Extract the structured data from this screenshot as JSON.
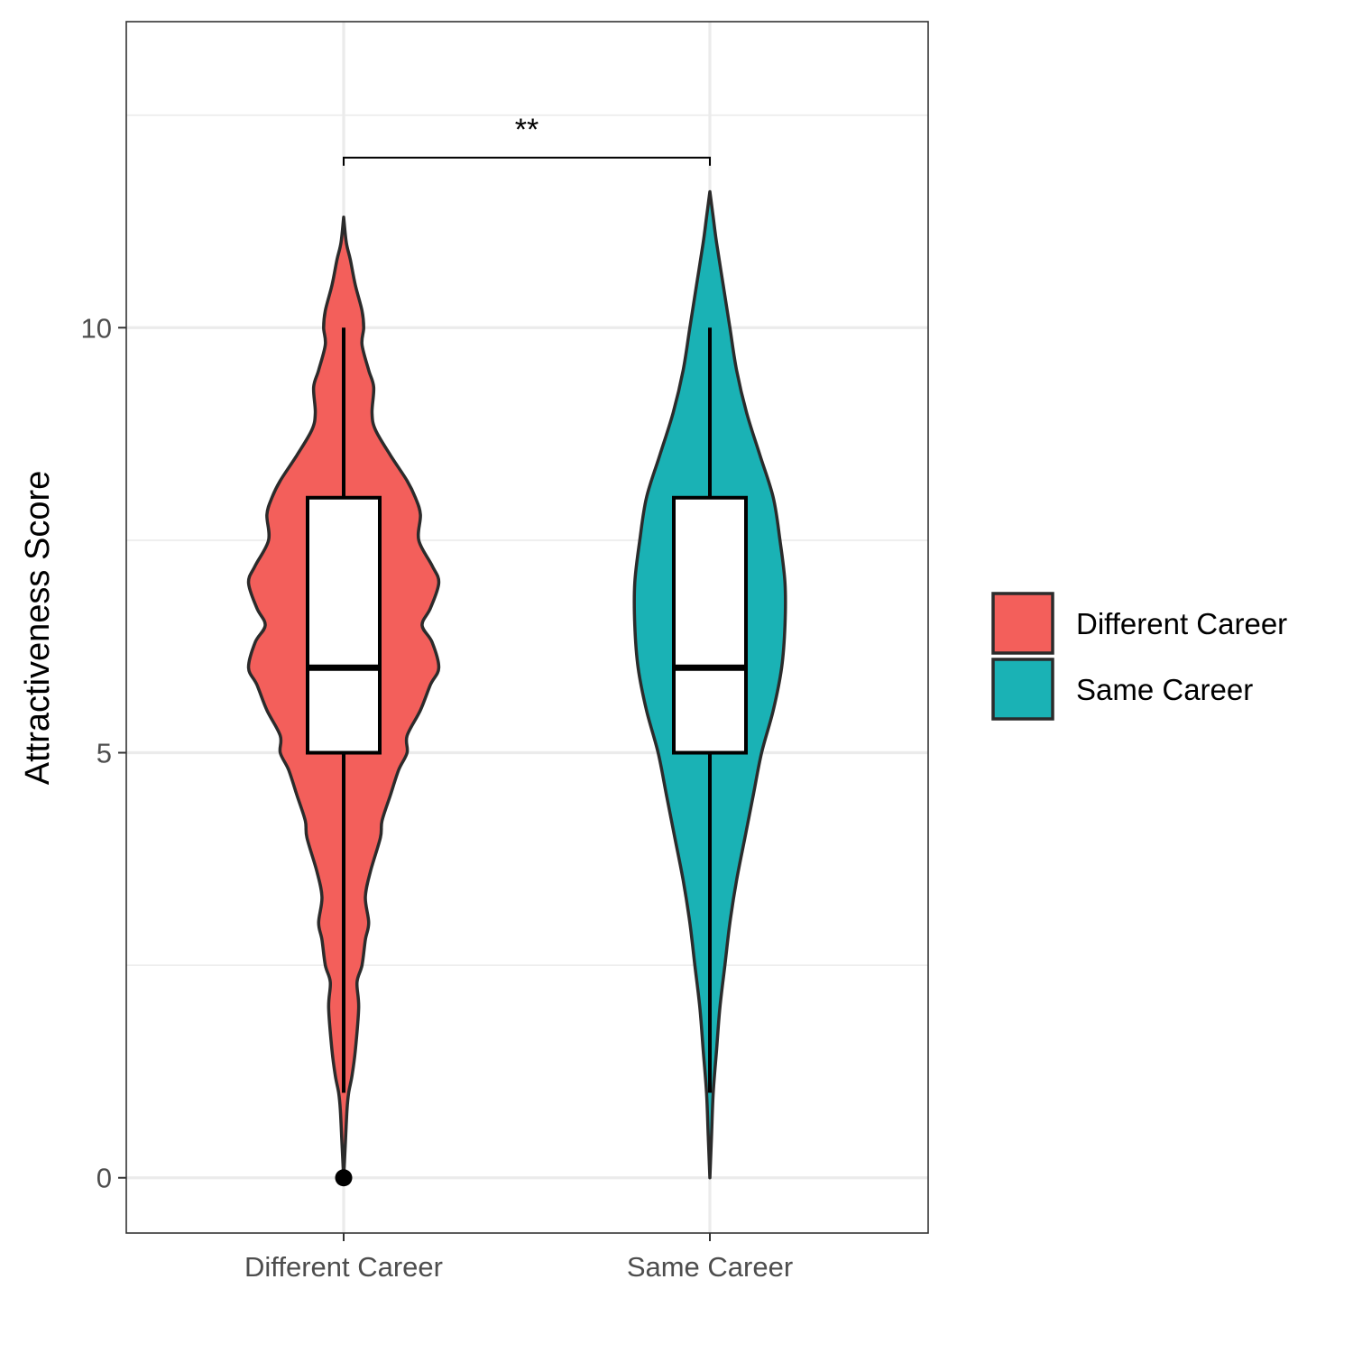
{
  "chart_data": {
    "type": "violin",
    "title": "",
    "xlabel": "",
    "ylabel": "Attractiveness Score",
    "ylim": [
      -0.65,
      13.6
    ],
    "y_ticks": [
      0,
      5,
      10
    ],
    "y_tick_labels": [
      "0",
      "5",
      "10"
    ],
    "y_minor_gridlines": [
      2.5,
      7.5,
      12.5
    ],
    "grid": true,
    "categories": [
      "Different Career",
      "Same Career"
    ],
    "colors": {
      "Different Career": "#F35F5B",
      "Same Career": "#1AB2B5"
    },
    "groups": [
      {
        "name": "Different Career",
        "color": "#F35F5B",
        "boxplot": {
          "whisker_low": 1,
          "q1": 5,
          "median": 6,
          "q3": 8,
          "whisker_high": 10,
          "outliers": [
            0
          ]
        },
        "violin_range": [
          0,
          11.3
        ],
        "density_profile": [
          [
            0.0,
            0.0
          ],
          [
            0.4,
            0.005
          ],
          [
            0.8,
            0.01
          ],
          [
            1.0,
            0.015
          ],
          [
            1.2,
            0.025
          ],
          [
            1.5,
            0.035
          ],
          [
            2.0,
            0.045
          ],
          [
            2.3,
            0.04
          ],
          [
            2.5,
            0.055
          ],
          [
            2.8,
            0.065
          ],
          [
            3.0,
            0.075
          ],
          [
            3.3,
            0.065
          ],
          [
            3.6,
            0.08
          ],
          [
            4.0,
            0.11
          ],
          [
            4.2,
            0.115
          ],
          [
            4.5,
            0.14
          ],
          [
            4.8,
            0.165
          ],
          [
            5.0,
            0.19
          ],
          [
            5.2,
            0.19
          ],
          [
            5.5,
            0.23
          ],
          [
            5.8,
            0.26
          ],
          [
            6.0,
            0.285
          ],
          [
            6.3,
            0.265
          ],
          [
            6.5,
            0.235
          ],
          [
            6.7,
            0.26
          ],
          [
            7.0,
            0.285
          ],
          [
            7.2,
            0.265
          ],
          [
            7.5,
            0.225
          ],
          [
            7.8,
            0.23
          ],
          [
            8.0,
            0.215
          ],
          [
            8.2,
            0.19
          ],
          [
            8.5,
            0.14
          ],
          [
            8.8,
            0.095
          ],
          [
            9.0,
            0.085
          ],
          [
            9.3,
            0.09
          ],
          [
            9.5,
            0.075
          ],
          [
            9.8,
            0.055
          ],
          [
            10.0,
            0.06
          ],
          [
            10.2,
            0.055
          ],
          [
            10.5,
            0.035
          ],
          [
            10.8,
            0.02
          ],
          [
            11.0,
            0.008
          ],
          [
            11.3,
            0.0
          ]
        ]
      },
      {
        "name": "Same Career",
        "color": "#1AB2B5",
        "boxplot": {
          "whisker_low": 1,
          "q1": 5,
          "median": 6,
          "q3": 8,
          "whisker_high": 10,
          "outliers": []
        },
        "violin_range": [
          0,
          11.6
        ],
        "density_profile": [
          [
            0.0,
            0.0
          ],
          [
            0.5,
            0.005
          ],
          [
            1.0,
            0.01
          ],
          [
            1.5,
            0.02
          ],
          [
            2.0,
            0.03
          ],
          [
            2.5,
            0.045
          ],
          [
            3.0,
            0.06
          ],
          [
            3.5,
            0.08
          ],
          [
            4.0,
            0.105
          ],
          [
            4.5,
            0.13
          ],
          [
            5.0,
            0.155
          ],
          [
            5.5,
            0.19
          ],
          [
            6.0,
            0.215
          ],
          [
            6.5,
            0.225
          ],
          [
            7.0,
            0.225
          ],
          [
            7.5,
            0.21
          ],
          [
            8.0,
            0.19
          ],
          [
            8.5,
            0.15
          ],
          [
            9.0,
            0.11
          ],
          [
            9.5,
            0.08
          ],
          [
            10.0,
            0.06
          ],
          [
            10.5,
            0.04
          ],
          [
            11.0,
            0.02
          ],
          [
            11.3,
            0.01
          ],
          [
            11.6,
            0.0
          ]
        ]
      }
    ],
    "significance": {
      "label": "**",
      "between": [
        "Different Career",
        "Same Career"
      ],
      "bracket_y": 12.0
    },
    "legend": {
      "placement": "right",
      "entries": [
        {
          "label": "Different Career",
          "color": "#F35F5B"
        },
        {
          "label": "Same Career",
          "color": "#1AB2B5"
        }
      ]
    }
  }
}
